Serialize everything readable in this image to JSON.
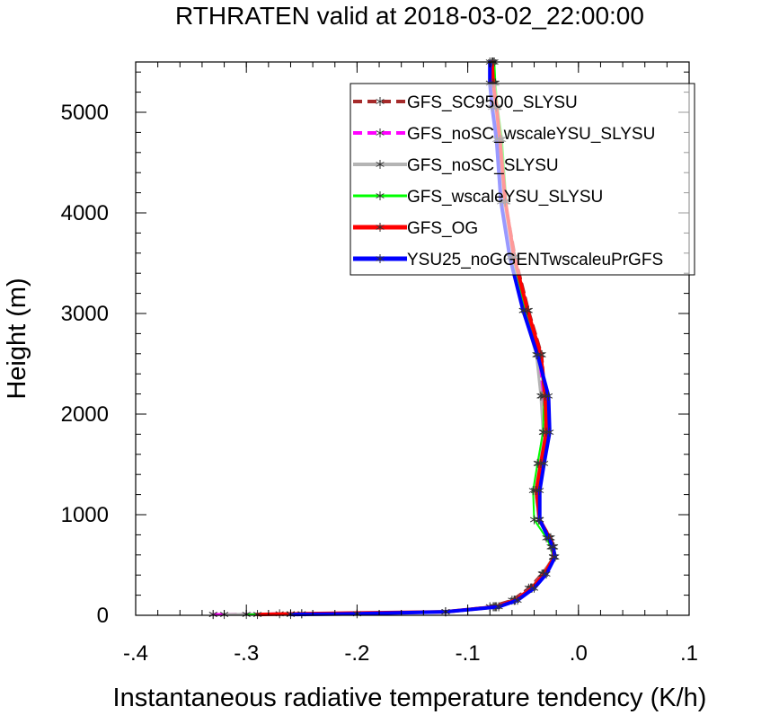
{
  "chart_data": {
    "type": "line",
    "title": "RTHRATEN valid at 2018-03-02_22:00:00",
    "xlabel": "Instantaneous radiative temperature tendency (K/h)",
    "ylabel": "Height (m)",
    "xlim": [
      -0.4,
      0.1
    ],
    "ylim": [
      0,
      5500
    ],
    "x_ticks": [
      {
        "value": -0.4,
        "label": "-.4"
      },
      {
        "value": -0.3,
        "label": "-.3"
      },
      {
        "value": -0.2,
        "label": "-.2"
      },
      {
        "value": -0.1,
        "label": "-.1"
      },
      {
        "value": 0.0,
        "label": ".0"
      },
      {
        "value": 0.1,
        "label": ".1"
      }
    ],
    "y_ticks": [
      {
        "value": 0,
        "label": "0"
      },
      {
        "value": 1000,
        "label": "1000"
      },
      {
        "value": 2000,
        "label": "2000"
      },
      {
        "value": 3000,
        "label": "3000"
      },
      {
        "value": 4000,
        "label": "4000"
      },
      {
        "value": 5000,
        "label": "5000"
      }
    ],
    "grid": false,
    "legend_position": "top-right",
    "series": [
      {
        "name": "GFS_SC9500_SLYSU",
        "color": "#a52a2a",
        "dash": "dash",
        "width": 3,
        "points": [
          [
            -0.33,
            8
          ],
          [
            -0.26,
            15
          ],
          [
            -0.12,
            35
          ],
          [
            -0.08,
            85
          ],
          [
            -0.06,
            150
          ],
          [
            -0.045,
            270
          ],
          [
            -0.033,
            410
          ],
          [
            -0.022,
            580
          ],
          [
            -0.022,
            680
          ],
          [
            -0.025,
            770
          ],
          [
            -0.035,
            950
          ],
          [
            -0.037,
            1240
          ],
          [
            -0.034,
            1510
          ],
          [
            -0.03,
            1820
          ],
          [
            -0.03,
            2180
          ],
          [
            -0.033,
            2590
          ],
          [
            -0.045,
            3030
          ],
          [
            -0.057,
            3560
          ],
          [
            -0.066,
            4110
          ],
          [
            -0.07,
            4730
          ],
          [
            -0.074,
            5050
          ],
          [
            -0.076,
            5290
          ],
          [
            -0.077,
            5500
          ]
        ]
      },
      {
        "name": "GFS_noSC_wscaleYSU_SLYSU",
        "color": "#ff00ff",
        "dash": "dash",
        "width": 3,
        "points": [
          [
            -0.33,
            8
          ],
          [
            -0.27,
            15
          ],
          [
            -0.12,
            35
          ],
          [
            -0.075,
            85
          ],
          [
            -0.058,
            150
          ],
          [
            -0.043,
            270
          ],
          [
            -0.032,
            410
          ],
          [
            -0.023,
            580
          ],
          [
            -0.024,
            680
          ],
          [
            -0.027,
            770
          ],
          [
            -0.036,
            950
          ],
          [
            -0.039,
            1240
          ],
          [
            -0.036,
            1510
          ],
          [
            -0.031,
            1820
          ],
          [
            -0.033,
            2180
          ],
          [
            -0.036,
            2590
          ],
          [
            -0.048,
            3030
          ],
          [
            -0.059,
            3560
          ],
          [
            -0.067,
            4110
          ],
          [
            -0.072,
            4730
          ],
          [
            -0.075,
            5050
          ],
          [
            -0.077,
            5290
          ],
          [
            -0.078,
            5500
          ]
        ]
      },
      {
        "name": "GFS_noSC_SLYSU",
        "color": "#b4b4b4",
        "dash": "solid",
        "width": 3,
        "points": [
          [
            -0.32,
            8
          ],
          [
            -0.26,
            15
          ],
          [
            -0.12,
            35
          ],
          [
            -0.076,
            85
          ],
          [
            -0.058,
            150
          ],
          [
            -0.043,
            270
          ],
          [
            -0.032,
            410
          ],
          [
            -0.023,
            580
          ],
          [
            -0.024,
            680
          ],
          [
            -0.027,
            770
          ],
          [
            -0.036,
            950
          ],
          [
            -0.039,
            1240
          ],
          [
            -0.036,
            1510
          ],
          [
            -0.032,
            1820
          ],
          [
            -0.034,
            2180
          ],
          [
            -0.038,
            2590
          ],
          [
            -0.05,
            3030
          ],
          [
            -0.06,
            3560
          ],
          [
            -0.067,
            4110
          ],
          [
            -0.072,
            4730
          ],
          [
            -0.075,
            5050
          ],
          [
            -0.077,
            5290
          ],
          [
            -0.078,
            5500
          ]
        ]
      },
      {
        "name": "GFS_wscaleYSU_SLYSU",
        "color": "#00ff00",
        "dash": "solid",
        "width": 2,
        "points": [
          [
            -0.3,
            8
          ],
          [
            -0.25,
            15
          ],
          [
            -0.12,
            35
          ],
          [
            -0.077,
            85
          ],
          [
            -0.058,
            150
          ],
          [
            -0.043,
            270
          ],
          [
            -0.032,
            410
          ],
          [
            -0.023,
            580
          ],
          [
            -0.025,
            680
          ],
          [
            -0.029,
            770
          ],
          [
            -0.04,
            950
          ],
          [
            -0.041,
            1240
          ],
          [
            -0.037,
            1510
          ],
          [
            -0.032,
            1820
          ],
          [
            -0.031,
            2180
          ],
          [
            -0.035,
            2590
          ],
          [
            -0.048,
            3030
          ],
          [
            -0.059,
            3560
          ],
          [
            -0.065,
            4110
          ],
          [
            -0.069,
            4730
          ],
          [
            -0.073,
            5050
          ],
          [
            -0.075,
            5290
          ],
          [
            -0.076,
            5500
          ]
        ]
      },
      {
        "name": "GFS_OG",
        "color": "#ff0000",
        "dash": "solid",
        "width": 4,
        "points": [
          [
            -0.29,
            8
          ],
          [
            -0.25,
            15
          ],
          [
            -0.12,
            35
          ],
          [
            -0.074,
            85
          ],
          [
            -0.057,
            150
          ],
          [
            -0.042,
            270
          ],
          [
            -0.031,
            410
          ],
          [
            -0.022,
            580
          ],
          [
            -0.023,
            680
          ],
          [
            -0.026,
            770
          ],
          [
            -0.035,
            950
          ],
          [
            -0.038,
            1240
          ],
          [
            -0.034,
            1510
          ],
          [
            -0.029,
            1820
          ],
          [
            -0.03,
            2180
          ],
          [
            -0.034,
            2590
          ],
          [
            -0.046,
            3030
          ],
          [
            -0.058,
            3560
          ],
          [
            -0.066,
            4110
          ],
          [
            -0.071,
            4730
          ],
          [
            -0.074,
            5050
          ],
          [
            -0.077,
            5290
          ],
          [
            -0.078,
            5500
          ]
        ]
      },
      {
        "name": "YSU25_noGGENTwscaleuPrGFS",
        "color": "#0000ff",
        "dash": "solid",
        "width": 4,
        "points": [
          [
            -0.26,
            8
          ],
          [
            -0.2,
            15
          ],
          [
            -0.12,
            35
          ],
          [
            -0.072,
            85
          ],
          [
            -0.055,
            150
          ],
          [
            -0.04,
            270
          ],
          [
            -0.029,
            410
          ],
          [
            -0.021,
            580
          ],
          [
            -0.023,
            680
          ],
          [
            -0.027,
            770
          ],
          [
            -0.035,
            950
          ],
          [
            -0.035,
            1240
          ],
          [
            -0.031,
            1510
          ],
          [
            -0.026,
            1820
          ],
          [
            -0.027,
            2180
          ],
          [
            -0.037,
            2590
          ],
          [
            -0.05,
            3030
          ],
          [
            -0.062,
            3560
          ],
          [
            -0.07,
            4110
          ],
          [
            -0.074,
            4730
          ],
          [
            -0.078,
            5050
          ],
          [
            -0.08,
            5290
          ],
          [
            -0.08,
            5500
          ]
        ]
      }
    ]
  }
}
